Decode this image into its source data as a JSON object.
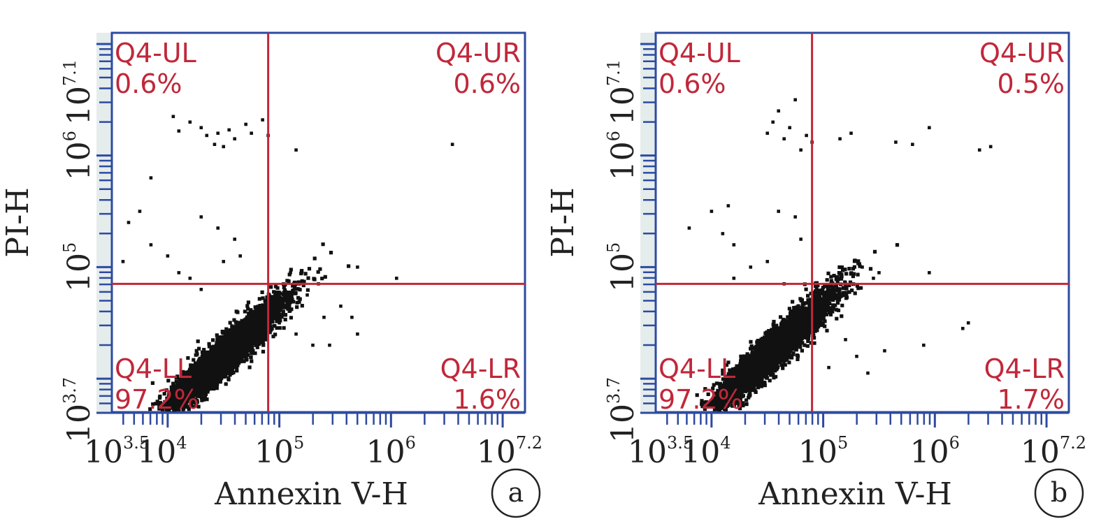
{
  "chart_data": [
    {
      "type": "scatter",
      "panel_label": "a",
      "xlabel": "Annexin V-H",
      "ylabel": "PI-H",
      "x_scale": "log",
      "y_scale": "log",
      "xlim_exp": [
        3.5,
        7.2
      ],
      "ylim_exp": [
        3.7,
        7.1
      ],
      "x_ticks": [
        {
          "base": "10",
          "exp": "3.5",
          "value": 3.5
        },
        {
          "base": "10",
          "exp": "4",
          "value": 4
        },
        {
          "base": "10",
          "exp": "5",
          "value": 5
        },
        {
          "base": "10",
          "exp": "6",
          "value": 6
        },
        {
          "base": "10",
          "exp": "7.2",
          "value": 7.2
        }
      ],
      "y_ticks": [
        {
          "base": "10",
          "exp": "3.7",
          "value": 3.7
        },
        {
          "base": "10",
          "exp": "5",
          "value": 5
        },
        {
          "base": "10",
          "exp": "6",
          "value": 6
        },
        {
          "base": "10",
          "exp": "7.1",
          "value": 7.1
        }
      ],
      "gate_x_exp": 4.9,
      "gate_y_exp": 4.85,
      "quadrants": {
        "UL": {
          "name": "Q4-UL",
          "percent": "0.6%"
        },
        "UR": {
          "name": "Q4-UR",
          "percent": "0.6%"
        },
        "LL": {
          "name": "Q4-LL",
          "percent": "97.2%"
        },
        "LR": {
          "name": "Q4-LR",
          "percent": "1.6%"
        }
      },
      "points": [
        [
          4.05,
          6.35
        ],
        [
          4.1,
          6.22
        ],
        [
          4.2,
          6.3
        ],
        [
          4.3,
          6.25
        ],
        [
          4.35,
          6.18
        ],
        [
          4.45,
          6.2
        ],
        [
          4.55,
          6.23
        ],
        [
          4.6,
          6.15
        ],
        [
          4.7,
          6.28
        ],
        [
          4.75,
          6.2
        ],
        [
          4.85,
          6.32
        ],
        [
          4.9,
          6.18
        ],
        [
          5.15,
          6.05
        ],
        [
          6.55,
          6.1
        ],
        [
          4.5,
          6.08
        ],
        [
          4.42,
          6.1
        ],
        [
          3.85,
          5.8
        ],
        [
          3.65,
          5.4
        ],
        [
          4.0,
          5.1
        ],
        [
          3.85,
          5.2
        ],
        [
          4.6,
          5.25
        ],
        [
          4.65,
          5.1
        ],
        [
          4.5,
          5.05
        ],
        [
          4.45,
          5.35
        ],
        [
          3.75,
          5.5
        ],
        [
          4.3,
          5.45
        ],
        [
          4.1,
          4.95
        ],
        [
          4.2,
          4.9
        ],
        [
          3.6,
          5.05
        ],
        [
          4.3,
          4.8
        ],
        [
          5.2,
          4.95
        ],
        [
          5.35,
          4.85
        ],
        [
          5.55,
          4.65
        ],
        [
          5.7,
          5.0
        ],
        [
          5.1,
          4.95
        ],
        [
          5.25,
          4.75
        ],
        [
          5.45,
          4.3
        ],
        [
          5.65,
          4.55
        ],
        [
          5.15,
          4.4
        ],
        [
          5.0,
          4.5
        ],
        [
          6.05,
          4.9
        ],
        [
          5.7,
          4.4
        ],
        [
          5.3,
          4.3
        ],
        [
          5.4,
          4.55
        ]
      ],
      "cluster": {
        "cx": 4.5,
        "cy": 4.2,
        "count": 4200,
        "seed": 11
      }
    },
    {
      "type": "scatter",
      "panel_label": "b",
      "xlabel": "Annexin V-H",
      "ylabel": "PI-H",
      "x_scale": "log",
      "y_scale": "log",
      "xlim_exp": [
        3.5,
        7.2
      ],
      "ylim_exp": [
        3.7,
        7.1
      ],
      "x_ticks": [
        {
          "base": "10",
          "exp": "3.5",
          "value": 3.5
        },
        {
          "base": "10",
          "exp": "4",
          "value": 4
        },
        {
          "base": "10",
          "exp": "5",
          "value": 5
        },
        {
          "base": "10",
          "exp": "6",
          "value": 6
        },
        {
          "base": "10",
          "exp": "7.2",
          "value": 7.2
        }
      ],
      "y_ticks": [
        {
          "base": "10",
          "exp": "3.7",
          "value": 3.7
        },
        {
          "base": "10",
          "exp": "5",
          "value": 5
        },
        {
          "base": "10",
          "exp": "6",
          "value": 6
        },
        {
          "base": "10",
          "exp": "7.1",
          "value": 7.1
        }
      ],
      "gate_x_exp": 4.9,
      "gate_y_exp": 4.85,
      "quadrants": {
        "UL": {
          "name": "Q4-UL",
          "percent": "0.6%"
        },
        "UR": {
          "name": "Q4-UR",
          "percent": "0.5%"
        },
        "LL": {
          "name": "Q4-LL",
          "percent": "97.2%"
        },
        "LR": {
          "name": "Q4-LR",
          "percent": "1.7%"
        }
      },
      "points": [
        [
          4.6,
          6.4
        ],
        [
          4.55,
          6.3
        ],
        [
          4.75,
          6.5
        ],
        [
          4.7,
          6.25
        ],
        [
          4.85,
          6.18
        ],
        [
          4.8,
          6.05
        ],
        [
          4.9,
          6.12
        ],
        [
          4.65,
          6.15
        ],
        [
          4.5,
          6.2
        ],
        [
          5.15,
          6.15
        ],
        [
          5.25,
          6.2
        ],
        [
          5.95,
          6.25
        ],
        [
          5.8,
          6.1
        ],
        [
          6.4,
          6.05
        ],
        [
          6.5,
          6.08
        ],
        [
          5.65,
          6.12
        ],
        [
          4.15,
          5.55
        ],
        [
          4.0,
          5.5
        ],
        [
          4.1,
          5.3
        ],
        [
          4.2,
          5.2
        ],
        [
          3.8,
          5.35
        ],
        [
          4.6,
          5.5
        ],
        [
          4.75,
          5.45
        ],
        [
          4.5,
          5.05
        ],
        [
          4.35,
          5.0
        ],
        [
          4.2,
          4.9
        ],
        [
          4.8,
          5.25
        ],
        [
          4.65,
          4.85
        ],
        [
          5.95,
          4.95
        ],
        [
          5.5,
          4.95
        ],
        [
          5.35,
          5.0
        ],
        [
          5.45,
          4.9
        ],
        [
          6.25,
          4.45
        ],
        [
          6.3,
          4.5
        ],
        [
          5.9,
          4.3
        ],
        [
          5.55,
          4.25
        ],
        [
          5.3,
          4.2
        ],
        [
          5.2,
          4.35
        ],
        [
          5.05,
          4.1
        ],
        [
          5.4,
          4.05
        ]
      ],
      "cluster": {
        "cx": 4.55,
        "cy": 4.25,
        "count": 4200,
        "seed": 29
      }
    }
  ]
}
